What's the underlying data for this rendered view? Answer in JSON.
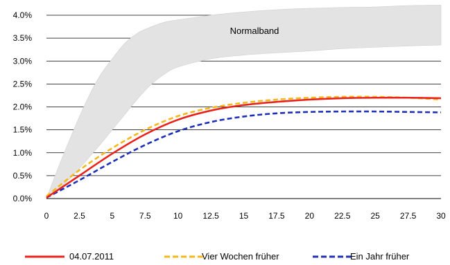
{
  "chart_data": {
    "type": "line",
    "title": "",
    "xlabel": "",
    "ylabel": "",
    "xlim": [
      0,
      30
    ],
    "ylim": [
      0,
      4.0
    ],
    "x_ticks": [
      "0",
      "2.5",
      "5",
      "7.5",
      "10",
      "12.5",
      "15",
      "17.5",
      "20",
      "22.5",
      "25",
      "27.5",
      "30"
    ],
    "y_ticks": [
      "0.0%",
      "0.5%",
      "1.0%",
      "1.5%",
      "2.0%",
      "2.5%",
      "3.0%",
      "3.5%",
      "4.0%"
    ],
    "grid": "horizontal",
    "legend_position": "bottom",
    "band": {
      "label": "Normalband",
      "color": "#e3e3e3",
      "x": [
        0,
        1,
        2,
        3,
        4,
        5,
        6,
        7,
        8,
        9,
        10,
        12.5,
        15,
        17.5,
        20,
        22.5,
        25,
        27.5,
        30
      ],
      "lower": [
        0.0,
        0.22,
        0.5,
        0.82,
        1.15,
        1.5,
        1.85,
        2.2,
        2.5,
        2.72,
        2.87,
        3.05,
        3.13,
        3.18,
        3.22,
        3.27,
        3.3,
        3.33,
        3.35
      ],
      "upper": [
        0.0,
        0.75,
        1.45,
        2.1,
        2.65,
        3.05,
        3.4,
        3.62,
        3.75,
        3.85,
        3.9,
        4.0,
        4.07,
        4.12,
        4.15,
        4.17,
        4.18,
        4.21,
        4.22
      ]
    },
    "x": [
      0,
      2.5,
      5,
      7.5,
      10,
      12.5,
      15,
      17.5,
      20,
      22.5,
      25,
      27.5,
      30
    ],
    "series": [
      {
        "name": "04.07.2011",
        "color": "#e8231b",
        "dash": "solid",
        "values": [
          0.02,
          0.5,
          0.98,
          1.4,
          1.72,
          1.92,
          2.04,
          2.11,
          2.16,
          2.19,
          2.2,
          2.2,
          2.19
        ]
      },
      {
        "name": "Vier Wochen früher",
        "color": "#f6b71c",
        "dash": "dashed",
        "values": [
          0.05,
          0.62,
          1.1,
          1.5,
          1.8,
          1.98,
          2.09,
          2.16,
          2.2,
          2.22,
          2.22,
          2.2,
          2.16
        ]
      },
      {
        "name": "Ein Jahr früher",
        "color": "#1e2fb8",
        "dash": "dashed",
        "values": [
          0.02,
          0.4,
          0.8,
          1.17,
          1.47,
          1.67,
          1.79,
          1.86,
          1.89,
          1.9,
          1.9,
          1.89,
          1.88
        ]
      }
    ]
  }
}
